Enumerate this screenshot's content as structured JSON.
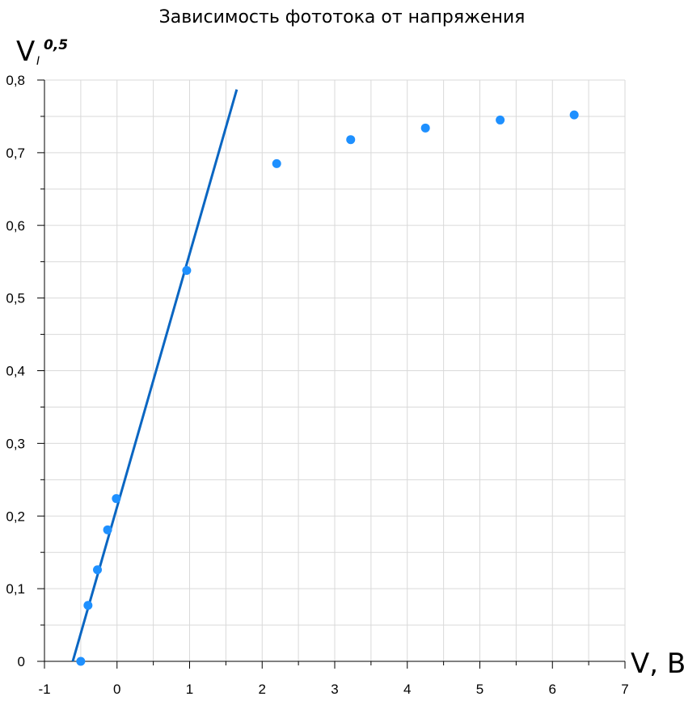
{
  "chart_data": {
    "type": "scatter",
    "title": "Зависимость фототока от напряжения",
    "xlabel": "V, В",
    "ylabel": {
      "main": "V",
      "sub": "I",
      "sup": "0,5"
    },
    "xlim": [
      -1,
      7
    ],
    "ylim": [
      0,
      0.8
    ],
    "x_ticks": [
      "-1",
      "0",
      "1",
      "2",
      "3",
      "4",
      "5",
      "6",
      "7"
    ],
    "y_ticks": [
      "0",
      "0,1",
      "0,2",
      "0,3",
      "0,4",
      "0,5",
      "0,6",
      "0,7",
      "0,8"
    ],
    "grid": true,
    "point_color": "#1e90ff",
    "line_color": "#0a66c2",
    "series": [
      {
        "type": "scatter",
        "x": [
          -0.5,
          -0.4,
          -0.27,
          -0.13,
          -0.01,
          0.96,
          2.2,
          3.22,
          4.25,
          5.28,
          6.3
        ],
        "y": [
          0.0,
          0.077,
          0.126,
          0.181,
          0.224,
          0.538,
          0.685,
          0.718,
          0.734,
          0.745,
          0.752
        ]
      },
      {
        "type": "line",
        "x": [
          -0.61,
          1.65
        ],
        "y": [
          0.0,
          0.787
        ]
      }
    ]
  }
}
